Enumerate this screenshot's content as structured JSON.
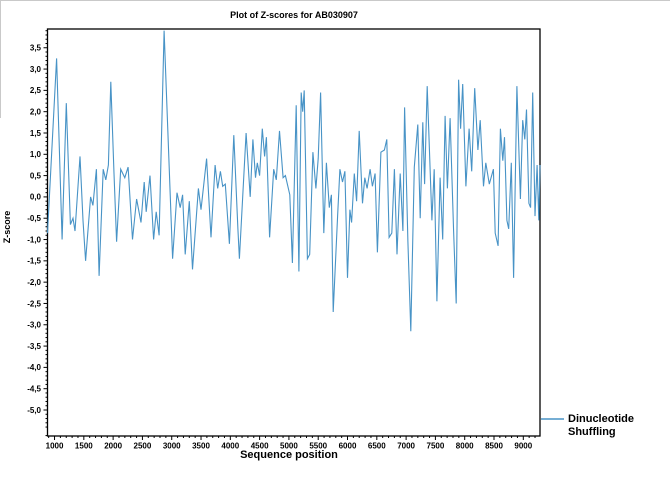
{
  "window": {
    "background": "#ffffff",
    "frame_border_color": "#c9c9c9"
  },
  "chart": {
    "title": "Plot of Z-scores for AB030907",
    "y_axis": {
      "title": "Z-score",
      "ticks": [
        {
          "label": "3,5",
          "value": 3.5
        },
        {
          "label": "3,0",
          "value": 3.0
        },
        {
          "label": "2,5",
          "value": 2.5
        },
        {
          "label": "2,0",
          "value": 2.0
        },
        {
          "label": "1,5",
          "value": 1.5
        },
        {
          "label": "1,0",
          "value": 1.0
        },
        {
          "label": "0,5",
          "value": 0.5
        },
        {
          "label": "0,0",
          "value": 0.0
        },
        {
          "label": "-0,5",
          "value": -0.5
        },
        {
          "label": "-1,0",
          "value": -1.0
        },
        {
          "label": "-1,5",
          "value": -1.5
        },
        {
          "label": "-2,0",
          "value": -2.0
        },
        {
          "label": "-2,5",
          "value": -2.5
        },
        {
          "label": "-3,0",
          "value": -3.0
        },
        {
          "label": "-3,5",
          "value": -3.5
        },
        {
          "label": "-4,0",
          "value": -4.0
        },
        {
          "label": "-4,5",
          "value": -4.5
        },
        {
          "label": "-5,0",
          "value": -5.0
        }
      ],
      "minor_step": 0.1,
      "minor_range": [
        -5.6,
        3.9
      ]
    },
    "x_axis": {
      "title": "Sequence position",
      "major_ticks": [
        1000,
        1500,
        2000,
        2500,
        3000,
        3500,
        4000,
        4500,
        5000,
        5500,
        6000,
        6500,
        7000,
        7500,
        8000,
        8500,
        9000
      ],
      "minor_step": 100,
      "minor_range": [
        900,
        9200
      ]
    },
    "legend": {
      "line1": "Dinucleotide",
      "line2": "Shuffling"
    },
    "colors": {
      "series": "#4893c6",
      "axis": "#000000"
    }
  },
  "chart_data": {
    "type": "line",
    "title": "Plot of Z-scores for AB030907",
    "xlabel": "Sequence position",
    "ylabel": "Z-score",
    "xlim": [
      880,
      9285
    ],
    "ylim": [
      -5.61,
      3.94
    ],
    "grid": false,
    "legend_position": "outside-bottom-right",
    "series": [
      {
        "name": "Dinucleotide Shuffling",
        "color": "#4893c6",
        "points": [
          [
            880,
            -0.85
          ],
          [
            1035,
            3.25
          ],
          [
            1130,
            -1.0
          ],
          [
            1200,
            2.2
          ],
          [
            1270,
            -0.65
          ],
          [
            1315,
            -0.5
          ],
          [
            1350,
            -0.8
          ],
          [
            1435,
            0.95
          ],
          [
            1485,
            -0.55
          ],
          [
            1530,
            -1.5
          ],
          [
            1615,
            0.0
          ],
          [
            1655,
            -0.2
          ],
          [
            1715,
            0.65
          ],
          [
            1760,
            -1.85
          ],
          [
            1830,
            0.65
          ],
          [
            1875,
            0.4
          ],
          [
            1920,
            0.75
          ],
          [
            1960,
            2.7
          ],
          [
            2015,
            0.55
          ],
          [
            2060,
            -1.05
          ],
          [
            2130,
            0.65
          ],
          [
            2200,
            0.45
          ],
          [
            2255,
            0.7
          ],
          [
            2330,
            -1.0
          ],
          [
            2400,
            -0.05
          ],
          [
            2475,
            -0.6
          ],
          [
            2530,
            0.35
          ],
          [
            2565,
            -0.35
          ],
          [
            2630,
            0.5
          ],
          [
            2690,
            -1.0
          ],
          [
            2735,
            -0.35
          ],
          [
            2785,
            -0.9
          ],
          [
            2870,
            3.9
          ],
          [
            3015,
            -1.45
          ],
          [
            3090,
            0.1
          ],
          [
            3145,
            -0.25
          ],
          [
            3185,
            0.05
          ],
          [
            3230,
            -1.35
          ],
          [
            3300,
            -0.1
          ],
          [
            3355,
            -1.7
          ],
          [
            3455,
            0.2
          ],
          [
            3500,
            -0.3
          ],
          [
            3595,
            0.9
          ],
          [
            3670,
            -0.95
          ],
          [
            3740,
            0.75
          ],
          [
            3785,
            0.2
          ],
          [
            3830,
            0.6
          ],
          [
            3870,
            0.25
          ],
          [
            3915,
            0.3
          ],
          [
            3985,
            -1.1
          ],
          [
            4060,
            1.45
          ],
          [
            4130,
            -0.75
          ],
          [
            4155,
            -1.45
          ],
          [
            4270,
            1.5
          ],
          [
            4340,
            0.0
          ],
          [
            4385,
            1.35
          ],
          [
            4430,
            0.45
          ],
          [
            4460,
            0.8
          ],
          [
            4500,
            0.5
          ],
          [
            4545,
            1.6
          ],
          [
            4585,
            0.95
          ],
          [
            4615,
            1.4
          ],
          [
            4670,
            -0.95
          ],
          [
            4740,
            0.65
          ],
          [
            4785,
            0.4
          ],
          [
            4840,
            1.55
          ],
          [
            4900,
            0.45
          ],
          [
            4940,
            0.5
          ],
          [
            5015,
            0.05
          ],
          [
            5060,
            -1.55
          ],
          [
            5125,
            2.15
          ],
          [
            5170,
            -1.75
          ],
          [
            5210,
            2.45
          ],
          [
            5235,
            2.0
          ],
          [
            5260,
            2.5
          ],
          [
            5315,
            -1.45
          ],
          [
            5355,
            -1.35
          ],
          [
            5410,
            1.05
          ],
          [
            5460,
            0.2
          ],
          [
            5500,
            0.9
          ],
          [
            5540,
            2.45
          ],
          [
            5595,
            -0.85
          ],
          [
            5640,
            0.8
          ],
          [
            5690,
            -0.25
          ],
          [
            5725,
            0.05
          ],
          [
            5755,
            -2.7
          ],
          [
            5830,
            -0.45
          ],
          [
            5870,
            0.65
          ],
          [
            5915,
            0.35
          ],
          [
            5955,
            0.6
          ],
          [
            6000,
            -1.9
          ],
          [
            6040,
            -0.3
          ],
          [
            6070,
            -0.6
          ],
          [
            6115,
            0.55
          ],
          [
            6155,
            -0.1
          ],
          [
            6200,
            1.55
          ],
          [
            6255,
            -0.15
          ],
          [
            6295,
            0.45
          ],
          [
            6335,
            0.2
          ],
          [
            6385,
            0.65
          ],
          [
            6425,
            0.25
          ],
          [
            6470,
            0.55
          ],
          [
            6510,
            -1.3
          ],
          [
            6570,
            1.05
          ],
          [
            6630,
            1.1
          ],
          [
            6670,
            1.35
          ],
          [
            6710,
            -0.95
          ],
          [
            6755,
            -0.85
          ],
          [
            6800,
            0.65
          ],
          [
            6845,
            -1.35
          ],
          [
            6900,
            0.55
          ],
          [
            6945,
            -0.8
          ],
          [
            6975,
            2.1
          ],
          [
            7030,
            -1.05
          ],
          [
            7080,
            -3.15
          ],
          [
            7140,
            0.7
          ],
          [
            7200,
            1.7
          ],
          [
            7240,
            -0.5
          ],
          [
            7285,
            1.75
          ],
          [
            7315,
            0.3
          ],
          [
            7360,
            2.6
          ],
          [
            7440,
            -0.55
          ],
          [
            7480,
            0.65
          ],
          [
            7525,
            -2.45
          ],
          [
            7580,
            0.45
          ],
          [
            7625,
            -1.0
          ],
          [
            7665,
            1.9
          ],
          [
            7705,
            0.2
          ],
          [
            7750,
            1.85
          ],
          [
            7810,
            -0.8
          ],
          [
            7855,
            -2.5
          ],
          [
            7895,
            2.75
          ],
          [
            7930,
            1.6
          ],
          [
            7965,
            2.65
          ],
          [
            8020,
            0.25
          ],
          [
            8075,
            1.6
          ],
          [
            8120,
            0.6
          ],
          [
            8170,
            2.55
          ],
          [
            8225,
            1.1
          ],
          [
            8265,
            1.8
          ],
          [
            8320,
            0.25
          ],
          [
            8360,
            0.8
          ],
          [
            8420,
            0.3
          ],
          [
            8490,
            0.65
          ],
          [
            8520,
            -0.85
          ],
          [
            8570,
            -1.15
          ],
          [
            8610,
            1.6
          ],
          [
            8650,
            0.85
          ],
          [
            8680,
            1.4
          ],
          [
            8720,
            -0.55
          ],
          [
            8750,
            -0.75
          ],
          [
            8795,
            0.8
          ],
          [
            8835,
            -1.9
          ],
          [
            8890,
            2.6
          ],
          [
            8950,
            -0.05
          ],
          [
            8990,
            1.8
          ],
          [
            9025,
            1.35
          ],
          [
            9055,
            2.05
          ],
          [
            9095,
            -0.15
          ],
          [
            9125,
            -0.25
          ],
          [
            9160,
            2.45
          ],
          [
            9200,
            -0.45
          ],
          [
            9235,
            0.75
          ],
          [
            9265,
            -0.55
          ],
          [
            9285,
            0.75
          ]
        ]
      }
    ]
  }
}
